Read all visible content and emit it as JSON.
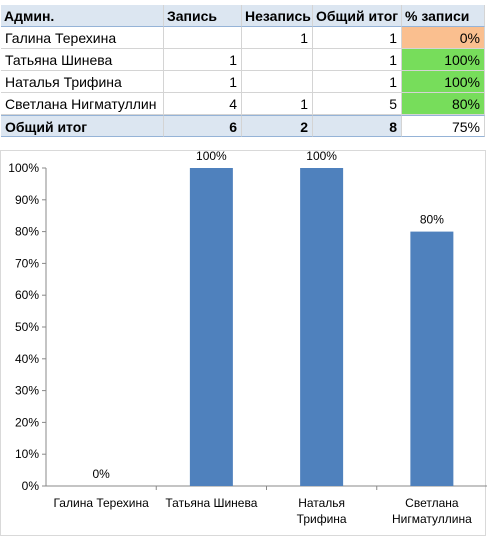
{
  "table": {
    "headers": [
      "Админ.",
      "Запись",
      "Незапись",
      "Общий итог",
      "% записи"
    ],
    "rows": [
      {
        "name": "Галина Терехина",
        "zapis": "",
        "nezapis": "1",
        "total": "1",
        "pct": "0%",
        "pct_color": "#fabf8f"
      },
      {
        "name": "Татьяна Шинева",
        "zapis": "1",
        "nezapis": "",
        "total": "1",
        "pct": "100%",
        "pct_color": "#77dd5b"
      },
      {
        "name": "Наталья Трифина",
        "zapis": "1",
        "nezapis": "",
        "total": "1",
        "pct": "100%",
        "pct_color": "#77dd5b"
      },
      {
        "name": "Светлана Нигматуллин",
        "zapis": "4",
        "nezapis": "1",
        "total": "5",
        "pct": "80%",
        "pct_color": "#77dd5b"
      }
    ],
    "total": {
      "name": "Общий итог",
      "zapis": "6",
      "nezapis": "2",
      "total": "8",
      "pct": "75%"
    }
  },
  "chart_data": {
    "type": "bar",
    "categories": [
      [
        "Галина Терехина"
      ],
      [
        "Татьяна Шинева"
      ],
      [
        "Наталья",
        "Трифина"
      ],
      [
        "Светлана",
        "Нигматуллина"
      ]
    ],
    "values": [
      0,
      100,
      100,
      80
    ],
    "data_labels": [
      "0%",
      "100%",
      "100%",
      "80%"
    ],
    "y_ticks": [
      "0%",
      "10%",
      "20%",
      "30%",
      "40%",
      "50%",
      "60%",
      "70%",
      "80%",
      "90%",
      "100%"
    ],
    "ylim": [
      0,
      100
    ],
    "bar_color": "#4f81bd",
    "grid": false,
    "legend": "none"
  }
}
